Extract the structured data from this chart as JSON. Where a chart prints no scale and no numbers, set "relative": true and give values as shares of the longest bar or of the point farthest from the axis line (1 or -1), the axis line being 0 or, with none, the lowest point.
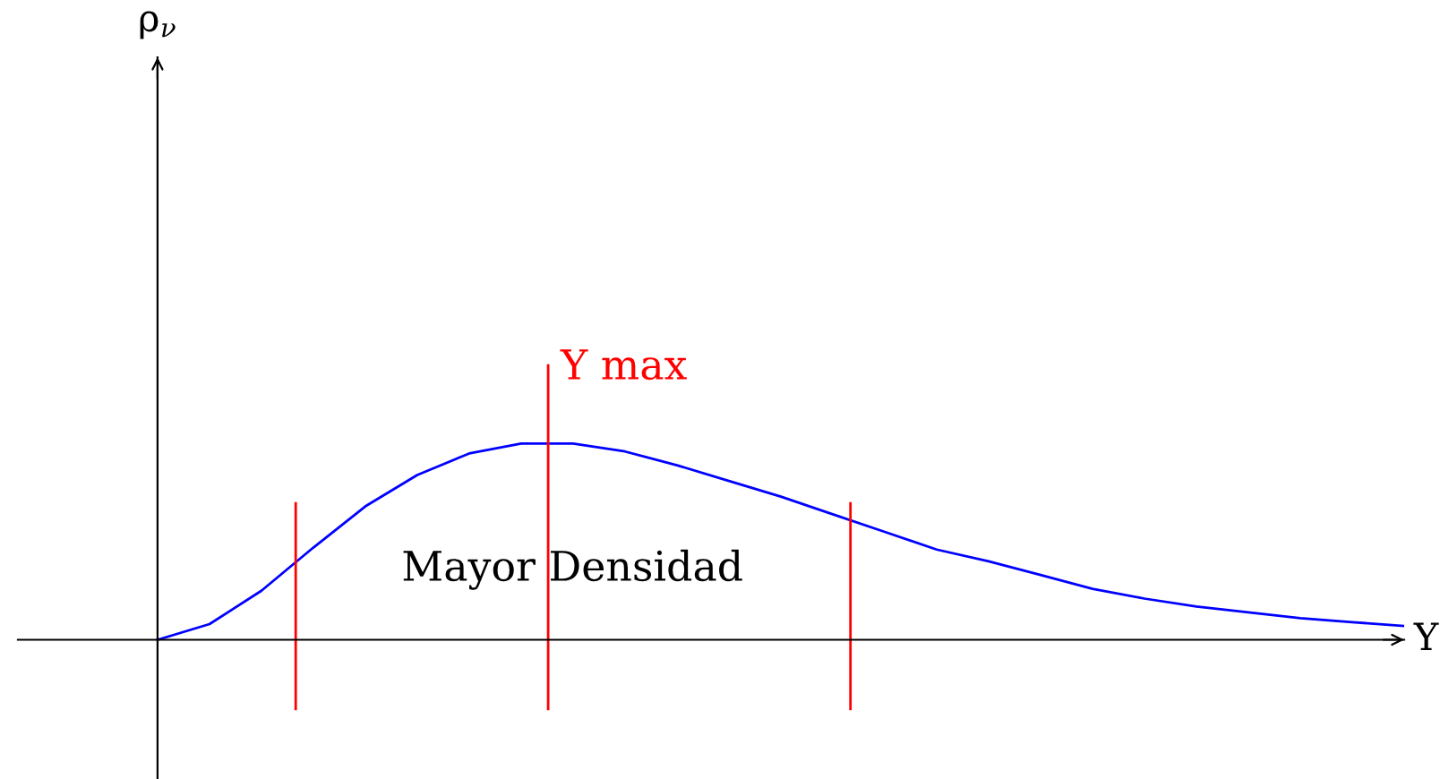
{
  "chart_data": {
    "type": "line",
    "relative": true,
    "xlabel": "Y",
    "categories": [
      null,
      null,
      null,
      null,
      null,
      null,
      null,
      null,
      null,
      null,
      null,
      null,
      null,
      null,
      null,
      null,
      null,
      null,
      null,
      null,
      null,
      null,
      null,
      null,
      null
    ],
    "series": [
      {
        "color": "#0000ff",
        "values": [
          0,
          0.08,
          0.25,
          0.47,
          0.68,
          0.84,
          0.95,
          1,
          1,
          0.96,
          0.89,
          0.81,
          0.73,
          0.64,
          0.55,
          0.46,
          0.4,
          0.33,
          0.26,
          0.21,
          0.17,
          0.14,
          0.11,
          0.09,
          0.07
        ]
      }
    ],
    "annotations": [
      "ρ$_{ν}$",
      "Y max",
      "Mayor Densidad"
    ]
  }
}
